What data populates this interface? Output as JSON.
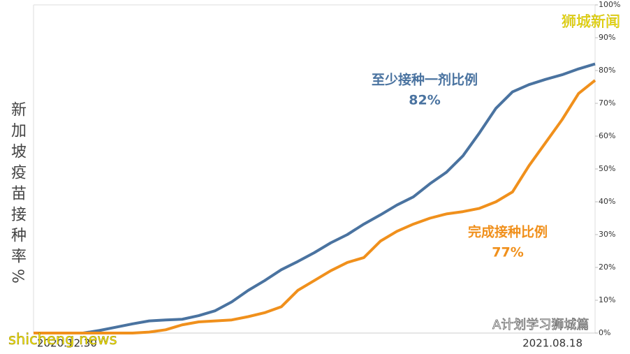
{
  "chart_data": {
    "type": "line",
    "y_label": "新加坡疫苗接种率%",
    "categories": [
      "2020.12.30",
      null,
      null,
      null,
      null,
      null,
      null,
      null,
      null,
      null,
      null,
      null,
      null,
      null,
      null,
      null,
      null,
      null,
      null,
      null,
      null,
      null,
      null,
      null,
      null,
      null,
      null,
      null,
      null,
      null,
      null,
      null,
      null,
      null,
      "2021.08.18"
    ],
    "series": [
      {
        "name": "至少接种一剂比例",
        "color": "#4a73a0",
        "annotation": "82%",
        "values": [
          0,
          0,
          0,
          0,
          0.8,
          1.8,
          2.8,
          3.7,
          4,
          4.2,
          5.3,
          6.8,
          9.5,
          13,
          16,
          19.3,
          21.8,
          24.5,
          27.5,
          30,
          33.2,
          36,
          39,
          41.5,
          45.5,
          49,
          54,
          61,
          68.5,
          73.5,
          75.7,
          77.3,
          78.7,
          80.5,
          82
        ]
      },
      {
        "name": "完成接种比例",
        "color": "#f0901c",
        "annotation": "77%",
        "values": [
          0,
          0,
          0,
          0,
          0,
          0,
          0,
          0.3,
          1,
          2.5,
          3.4,
          3.7,
          4,
          5,
          6.2,
          8,
          13,
          16,
          19,
          21.5,
          23,
          28,
          31,
          33.2,
          35,
          36.3,
          37,
          38,
          40,
          43,
          51,
          58,
          65,
          73,
          77
        ]
      }
    ],
    "ylim": [
      0,
      100
    ],
    "yticks": [
      {
        "value": 0,
        "label": "0%"
      },
      {
        "value": 10,
        "label": "10%"
      },
      {
        "value": 20,
        "label": "20%"
      },
      {
        "value": 30,
        "label": "30%"
      },
      {
        "value": 40,
        "label": "40%"
      },
      {
        "value": 50,
        "label": "50%"
      },
      {
        "value": 60,
        "label": "60%"
      },
      {
        "value": 70,
        "label": "70%"
      },
      {
        "value": 80,
        "label": "80%"
      },
      {
        "value": 90,
        "label": "90%"
      },
      {
        "value": 100,
        "label": "100%"
      }
    ],
    "watermarks": [
      "狮城新闻",
      "shicheng news",
      "A计划学习狮城篇"
    ]
  }
}
